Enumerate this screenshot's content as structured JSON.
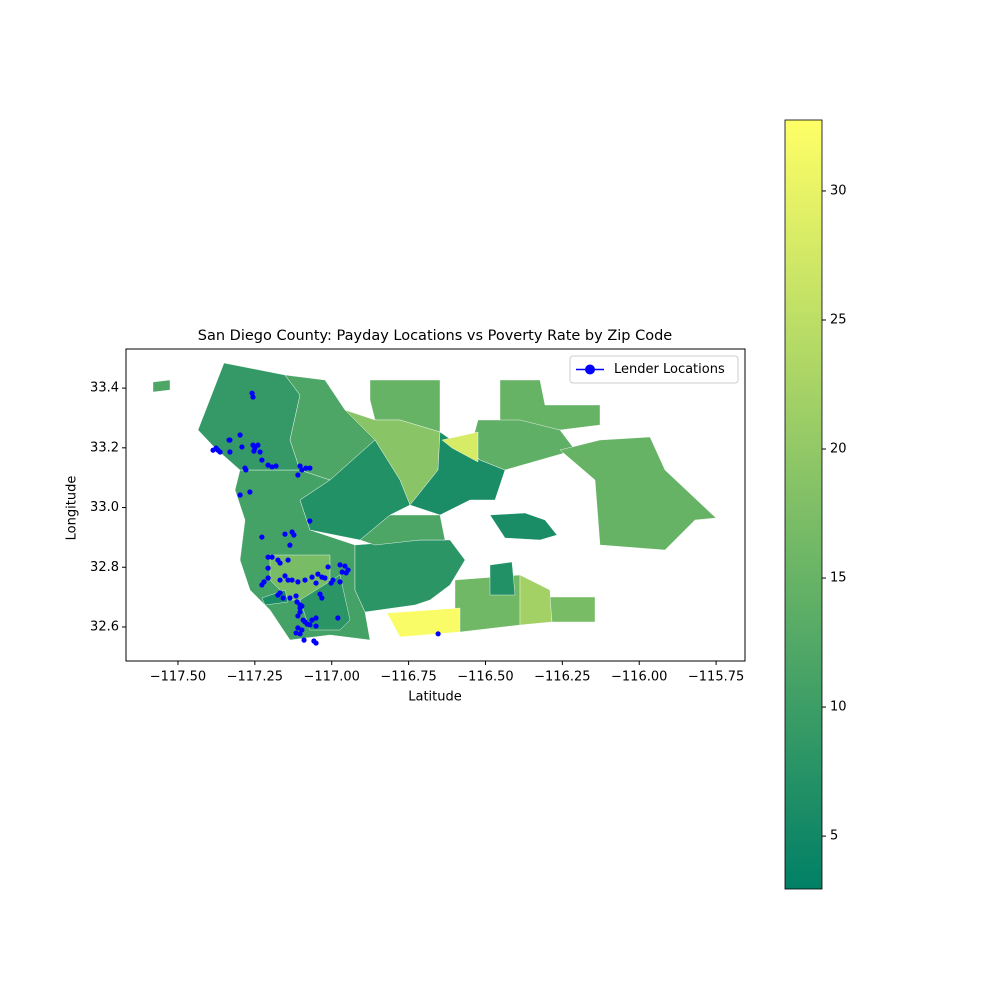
{
  "chart_data": {
    "type": "choropleth",
    "title": "San Diego County: Payday Locations vs Poverty Rate by Zip Code",
    "xlabel": "Latitude",
    "ylabel": "Longitude",
    "xlim": [
      -117.669,
      -115.656
    ],
    "ylim": [
      32.486,
      33.531
    ],
    "xticks": [
      {
        "value": -117.5,
        "label": "−117.50"
      },
      {
        "value": -117.25,
        "label": "−117.25"
      },
      {
        "value": -117.0,
        "label": "−117.00"
      },
      {
        "value": -116.75,
        "label": "−116.75"
      },
      {
        "value": -116.5,
        "label": "−116.50"
      },
      {
        "value": -116.25,
        "label": "−116.25"
      },
      {
        "value": -116.0,
        "label": "−116.00"
      },
      {
        "value": -115.75,
        "label": "−115.75"
      }
    ],
    "yticks": [
      32.6,
      32.8,
      {
        "value": 33.0,
        "label": "33.0"
      },
      33.2,
      33.4
    ],
    "colormap": "summer",
    "values": [
      11,
      9,
      12,
      15,
      19,
      7,
      6,
      15,
      14,
      28,
      15,
      6,
      8,
      12,
      16,
      22,
      17,
      32,
      7,
      17,
      8,
      12,
      6
    ],
    "clim": [
      2.95,
      32.75
    ],
    "cticks": [
      5,
      10,
      15,
      20,
      25,
      30
    ],
    "legend": "upper right",
    "series": [
      {
        "name": "Lender Locations",
        "color": "#0000ff",
        "x": [
          -117.259,
          -117.256,
          -117.298,
          -117.334,
          -117.331,
          -117.376,
          -117.37,
          -117.363,
          -117.386,
          -117.331,
          -117.292,
          -117.256,
          -117.25,
          -117.24,
          -117.253,
          -117.233,
          -117.227,
          -117.207,
          -117.194,
          -117.181,
          -117.282,
          -117.279,
          -117.103,
          -117.097,
          -117.084,
          -117.071,
          -117.11,
          -117.266,
          -117.298,
          -117.071,
          -117.227,
          -117.129,
          -117.123,
          -117.152,
          -117.136,
          -117.207,
          -117.194,
          -117.175,
          -117.207,
          -117.168,
          -117.142,
          -117.207,
          -117.22,
          -117.227,
          -117.168,
          -117.152,
          -117.142,
          -117.129,
          -117.11,
          -117.087,
          -117.064,
          -117.051,
          -117.045,
          -117.022,
          -116.996,
          -117.012,
          -117.032,
          -116.973,
          -116.957,
          -116.966,
          -116.947,
          -116.953,
          -116.973,
          -117.002,
          -117.038,
          -117.032,
          -117.113,
          -117.103,
          -117.103,
          -117.097,
          -117.116,
          -117.168,
          -117.158,
          -117.175,
          -117.136,
          -117.11,
          -117.103,
          -117.093,
          -117.087,
          -117.08,
          -117.071,
          -117.064,
          -117.051,
          -117.051,
          -117.097,
          -117.103,
          -117.116,
          -117.11,
          -117.09,
          -117.058,
          -117.051,
          -116.98,
          -116.654
        ],
        "y": [
          33.383,
          33.37,
          33.243,
          33.226,
          33.226,
          33.199,
          33.192,
          33.186,
          33.192,
          33.186,
          33.203,
          33.209,
          33.199,
          33.209,
          33.189,
          33.186,
          33.159,
          33.142,
          33.136,
          33.139,
          33.132,
          33.126,
          33.139,
          33.126,
          33.132,
          33.132,
          33.109,
          33.052,
          33.042,
          32.955,
          32.901,
          32.918,
          32.908,
          32.911,
          32.874,
          32.834,
          32.834,
          32.824,
          32.797,
          32.814,
          32.824,
          32.764,
          32.751,
          32.741,
          32.757,
          32.771,
          32.757,
          32.757,
          32.751,
          32.757,
          32.767,
          32.747,
          32.777,
          32.764,
          32.757,
          32.801,
          32.767,
          32.808,
          32.804,
          32.784,
          32.791,
          32.781,
          32.751,
          32.747,
          32.71,
          32.697,
          32.684,
          32.674,
          32.664,
          32.67,
          32.704,
          32.714,
          32.697,
          32.707,
          32.697,
          32.637,
          32.65,
          32.623,
          32.617,
          32.61,
          32.607,
          32.623,
          32.63,
          32.603,
          32.59,
          32.577,
          32.58,
          32.597,
          32.556,
          32.553,
          32.546,
          32.63,
          32.577
        ]
      }
    ]
  }
}
